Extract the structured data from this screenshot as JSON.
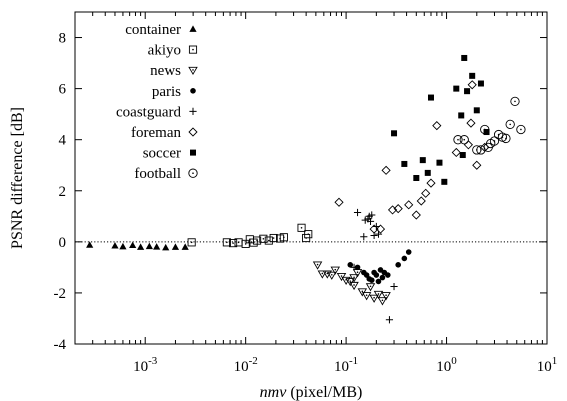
{
  "chart_data": {
    "type": "scatter",
    "xscale": "log",
    "xlim": [
      0.0002,
      10
    ],
    "ylim": [
      -4,
      9
    ],
    "x_ticks": [
      {
        "value": 0.001,
        "base": "10",
        "exp": "-3"
      },
      {
        "value": 0.01,
        "base": "10",
        "exp": "-2"
      },
      {
        "value": 0.1,
        "base": "10",
        "exp": "-1"
      },
      {
        "value": 1,
        "base": "10",
        "exp": "0"
      },
      {
        "value": 10,
        "base": "10",
        "exp": "1"
      }
    ],
    "y_ticks": [
      {
        "value": -4,
        "label": "-4"
      },
      {
        "value": -2,
        "label": "-2"
      },
      {
        "value": 0,
        "label": "0"
      },
      {
        "value": 2,
        "label": "2"
      },
      {
        "value": 4,
        "label": "4"
      },
      {
        "value": 6,
        "label": "6"
      },
      {
        "value": 8,
        "label": "8"
      }
    ],
    "ylabel": "PSNR difference [dB]",
    "xlabel_italic": "nmv",
    "xlabel_rest": " (pixel/MB)",
    "zero_line": true,
    "legend_position": "top-left",
    "series": [
      {
        "name": "container",
        "marker": "triangle-filled",
        "points": [
          [
            0.00028,
            -0.12
          ],
          [
            0.0005,
            -0.15
          ],
          [
            0.0006,
            -0.18
          ],
          [
            0.00075,
            -0.13
          ],
          [
            0.0009,
            -0.2
          ],
          [
            0.0011,
            -0.17
          ],
          [
            0.0013,
            -0.19
          ],
          [
            0.0016,
            -0.22
          ],
          [
            0.002,
            -0.2
          ],
          [
            0.0025,
            -0.2
          ]
        ]
      },
      {
        "name": "akiyo",
        "marker": "square-dot",
        "points": [
          [
            0.0029,
            -0.02
          ],
          [
            0.0065,
            -0.02
          ],
          [
            0.0075,
            -0.05
          ],
          [
            0.0085,
            -0.02
          ],
          [
            0.01,
            -0.08
          ],
          [
            0.011,
            0.1
          ],
          [
            0.012,
            -0.03
          ],
          [
            0.013,
            0.05
          ],
          [
            0.015,
            0.12
          ],
          [
            0.017,
            0.05
          ],
          [
            0.019,
            0.15
          ],
          [
            0.022,
            0.13
          ],
          [
            0.024,
            0.18
          ],
          [
            0.036,
            0.55
          ],
          [
            0.04,
            0.15
          ],
          [
            0.042,
            0.3
          ]
        ]
      },
      {
        "name": "news",
        "marker": "triangle-down-dot",
        "points": [
          [
            0.052,
            -0.9
          ],
          [
            0.058,
            -1.25
          ],
          [
            0.065,
            -1.25
          ],
          [
            0.072,
            -1.3
          ],
          [
            0.078,
            -1.1
          ],
          [
            0.09,
            -1.35
          ],
          [
            0.1,
            -1.5
          ],
          [
            0.11,
            -1.55
          ],
          [
            0.12,
            -1.7
          ],
          [
            0.13,
            -1.2
          ],
          [
            0.145,
            -1.95
          ],
          [
            0.16,
            -2.1
          ],
          [
            0.175,
            -1.75
          ],
          [
            0.19,
            -2.2
          ],
          [
            0.21,
            -2.05
          ],
          [
            0.23,
            -2.3
          ],
          [
            0.25,
            -2.1
          ],
          [
            0.12,
            -1.4
          ]
        ]
      },
      {
        "name": "paris",
        "marker": "circle-filled",
        "points": [
          [
            0.11,
            -0.9
          ],
          [
            0.13,
            -1.0
          ],
          [
            0.15,
            -1.2
          ],
          [
            0.16,
            -1.3
          ],
          [
            0.17,
            -1.45
          ],
          [
            0.18,
            -1.5
          ],
          [
            0.19,
            -1.2
          ],
          [
            0.2,
            -1.3
          ],
          [
            0.21,
            -1.55
          ],
          [
            0.22,
            -1.1
          ],
          [
            0.23,
            -1.4
          ],
          [
            0.24,
            -1.2
          ],
          [
            0.26,
            -1.3
          ],
          [
            0.33,
            -0.9
          ],
          [
            0.38,
            -0.65
          ],
          [
            0.42,
            -0.4
          ]
        ]
      },
      {
        "name": "coastguard",
        "marker": "plus",
        "points": [
          [
            0.12,
            -1.0
          ],
          [
            0.13,
            1.15
          ],
          [
            0.15,
            0.2
          ],
          [
            0.155,
            0.85
          ],
          [
            0.165,
            0.9
          ],
          [
            0.17,
            1.0
          ],
          [
            0.175,
            0.8
          ],
          [
            0.18,
            1.05
          ],
          [
            0.19,
            0.25
          ],
          [
            0.2,
            0.6
          ],
          [
            0.21,
            0.3
          ],
          [
            0.27,
            -3.05
          ],
          [
            0.3,
            -1.75
          ]
        ]
      },
      {
        "name": "foreman",
        "marker": "diamond",
        "points": [
          [
            0.085,
            1.55
          ],
          [
            0.19,
            0.5
          ],
          [
            0.22,
            0.5
          ],
          [
            0.25,
            2.8
          ],
          [
            0.29,
            1.25
          ],
          [
            0.33,
            1.3
          ],
          [
            0.42,
            1.45
          ],
          [
            0.5,
            1.05
          ],
          [
            0.56,
            1.6
          ],
          [
            0.62,
            1.9
          ],
          [
            0.7,
            2.3
          ],
          [
            0.8,
            4.55
          ],
          [
            1.25,
            3.5
          ],
          [
            1.65,
            3.8
          ],
          [
            1.75,
            4.65
          ],
          [
            1.8,
            6.15
          ],
          [
            2.0,
            3.0
          ],
          [
            2.4,
            3.7
          ]
        ]
      },
      {
        "name": "soccer",
        "marker": "square-filled",
        "points": [
          [
            0.3,
            4.25
          ],
          [
            0.38,
            3.05
          ],
          [
            0.5,
            2.5
          ],
          [
            0.58,
            3.2
          ],
          [
            0.65,
            2.7
          ],
          [
            0.7,
            5.65
          ],
          [
            0.85,
            3.1
          ],
          [
            0.95,
            2.35
          ],
          [
            1.25,
            6.0
          ],
          [
            1.4,
            4.95
          ],
          [
            1.45,
            3.4
          ],
          [
            1.5,
            7.2
          ],
          [
            1.6,
            5.9
          ],
          [
            1.8,
            6.5
          ],
          [
            2.0,
            5.15
          ],
          [
            2.2,
            6.2
          ],
          [
            2.5,
            4.3
          ]
        ]
      },
      {
        "name": "football",
        "marker": "circle-dot",
        "points": [
          [
            1.3,
            4.0
          ],
          [
            1.5,
            4.0
          ],
          [
            2.0,
            3.6
          ],
          [
            2.2,
            3.6
          ],
          [
            2.4,
            4.4
          ],
          [
            2.6,
            3.7
          ],
          [
            2.75,
            3.85
          ],
          [
            3.0,
            3.95
          ],
          [
            3.3,
            4.2
          ],
          [
            3.6,
            4.1
          ],
          [
            3.9,
            4.05
          ],
          [
            4.3,
            4.6
          ],
          [
            4.8,
            5.5
          ],
          [
            5.5,
            4.4
          ]
        ]
      }
    ]
  }
}
